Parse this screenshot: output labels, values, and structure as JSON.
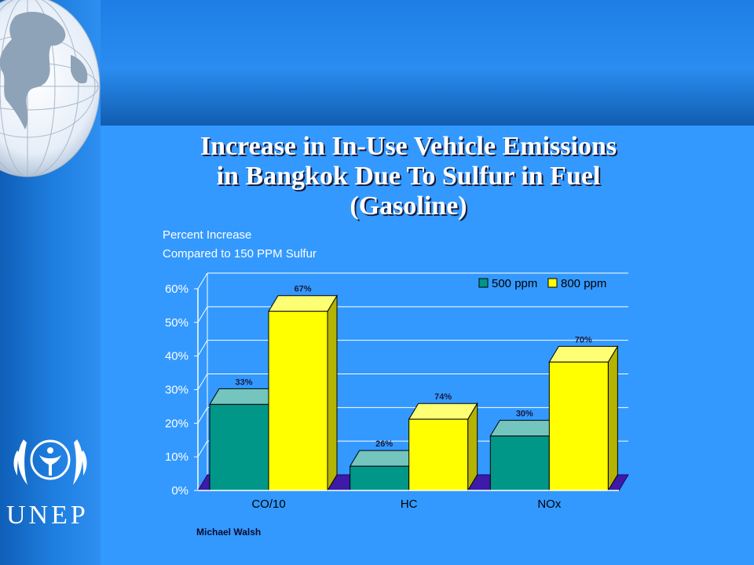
{
  "title": {
    "line1": "Increase in In-Use Vehicle Emissions",
    "line2": "in Bangkok Due To Sulfur in Fuel",
    "line3": "(Gasoline)"
  },
  "chart_subtitle": {
    "line1": "Percent Increase",
    "line2": "Compared to 150 PPM Sulfur"
  },
  "author": "Michael Walsh",
  "logo_text": "UNEP",
  "colors": {
    "background": "#3399ff",
    "series_500": "#009688",
    "series_800": "#ffff00",
    "floor": "#3d1aa8"
  },
  "chart_data": {
    "type": "bar",
    "categories": [
      "CO/10",
      "HC",
      "NOx"
    ],
    "series": [
      {
        "name": "500 ppm",
        "values": [
          25.6,
          7.2,
          16.2
        ],
        "labels": [
          "33%",
          "26%",
          "30%"
        ]
      },
      {
        "name": "800 ppm",
        "values": [
          53.3,
          21.2,
          38.2
        ],
        "labels": [
          "67%",
          "74%",
          "70%"
        ]
      }
    ],
    "yticks": [
      "0%",
      "10%",
      "20%",
      "30%",
      "40%",
      "50%",
      "60%"
    ],
    "ylim": [
      0,
      60
    ],
    "legend": "top-right",
    "grid": true
  }
}
